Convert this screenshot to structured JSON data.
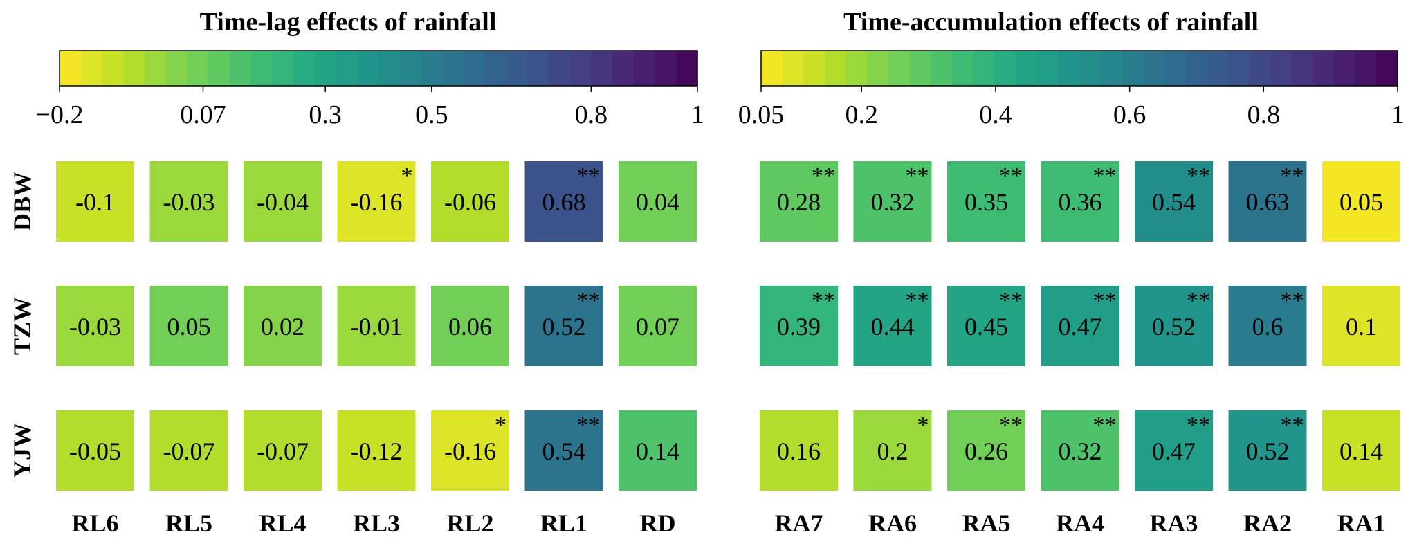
{
  "chart_data": [
    {
      "type": "heatmap",
      "title": "Time-lag effects of rainfall",
      "rows": [
        "DBW",
        "TZW",
        "YJW"
      ],
      "columns": [
        "RL6",
        "RL5",
        "RL4",
        "RL3",
        "RL2",
        "RL1",
        "RD"
      ],
      "values": [
        [
          -0.1,
          -0.03,
          -0.04,
          -0.16,
          -0.06,
          0.68,
          0.04
        ],
        [
          -0.03,
          0.05,
          0.02,
          -0.01,
          0.06,
          0.52,
          0.07
        ],
        [
          -0.05,
          -0.07,
          -0.07,
          -0.12,
          -0.16,
          0.54,
          0.14
        ]
      ],
      "value_labels": [
        [
          "-0.1",
          "-0.03",
          "-0.04",
          "-0.16",
          "-0.06",
          "0.68",
          "0.04"
        ],
        [
          "-0.03",
          "0.05",
          "0.02",
          "-0.01",
          "0.06",
          "0.52",
          "0.07"
        ],
        [
          "-0.05",
          "-0.07",
          "-0.07",
          "-0.12",
          "-0.16",
          "0.54",
          "0.14"
        ]
      ],
      "significance": [
        [
          "",
          "",
          "",
          "*",
          "",
          "**",
          ""
        ],
        [
          "",
          "",
          "",
          "",
          "",
          "**",
          ""
        ],
        [
          "",
          "",
          "",
          "",
          "*",
          "**",
          ""
        ]
      ],
      "colorbar": {
        "min": -0.2,
        "max": 1,
        "ticks": [
          -0.2,
          0.07,
          0.3,
          0.5,
          0.8,
          1
        ],
        "tick_labels": [
          "−0.2",
          "0.07",
          "0.3",
          "0.5",
          "0.8",
          "1"
        ],
        "colormap": "viridis_r",
        "segments": 30
      }
    },
    {
      "type": "heatmap",
      "title": "Time-accumulation effects of rainfall",
      "rows": [
        "DBW",
        "TZW",
        "YJW"
      ],
      "columns": [
        "RA7",
        "RA6",
        "RA5",
        "RA4",
        "RA3",
        "RA2",
        "RA1"
      ],
      "values": [
        [
          0.28,
          0.32,
          0.35,
          0.36,
          0.54,
          0.63,
          0.05
        ],
        [
          0.39,
          0.44,
          0.45,
          0.47,
          0.52,
          0.6,
          0.1
        ],
        [
          0.16,
          0.2,
          0.26,
          0.32,
          0.47,
          0.52,
          0.14
        ]
      ],
      "value_labels": [
        [
          "0.28",
          "0.32",
          "0.35",
          "0.36",
          "0.54",
          "0.63",
          "0.05"
        ],
        [
          "0.39",
          "0.44",
          "0.45",
          "0.47",
          "0.52",
          "0.6",
          "0.1"
        ],
        [
          "0.16",
          "0.2",
          "0.26",
          "0.32",
          "0.47",
          "0.52",
          "0.14"
        ]
      ],
      "significance": [
        [
          "**",
          "**",
          "**",
          "**",
          "**",
          "**",
          ""
        ],
        [
          "**",
          "**",
          "**",
          "**",
          "**",
          "**",
          ""
        ],
        [
          "",
          "*",
          "**",
          "**",
          "**",
          "**",
          ""
        ]
      ],
      "colorbar": {
        "min": 0.05,
        "max": 1,
        "ticks": [
          0.05,
          0.2,
          0.4,
          0.6,
          0.8,
          1
        ],
        "tick_labels": [
          "0.05",
          "0.2",
          "0.4",
          "0.6",
          "0.8",
          "1"
        ],
        "colormap": "viridis_r",
        "segments": 30
      }
    }
  ]
}
